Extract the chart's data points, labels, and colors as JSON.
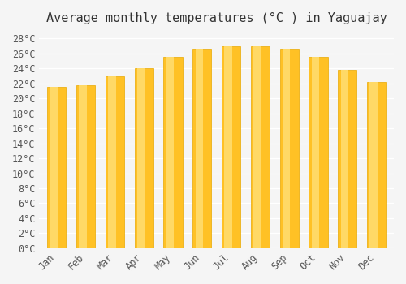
{
  "title": "Average monthly temperatures (°C ) in Yaguajay",
  "months": [
    "Jan",
    "Feb",
    "Mar",
    "Apr",
    "May",
    "Jun",
    "Jul",
    "Aug",
    "Sep",
    "Oct",
    "Nov",
    "Dec"
  ],
  "values": [
    21.5,
    21.8,
    23.0,
    24.0,
    25.5,
    26.5,
    27.0,
    27.0,
    26.5,
    25.5,
    23.8,
    22.2
  ],
  "bar_color_top": "#FFC125",
  "bar_color_bottom": "#FFD966",
  "ylim": [
    0,
    29
  ],
  "yticks": [
    0,
    2,
    4,
    6,
    8,
    10,
    12,
    14,
    16,
    18,
    20,
    22,
    24,
    26,
    28
  ],
  "background_color": "#f5f5f5",
  "grid_color": "#ffffff",
  "title_fontsize": 11,
  "tick_fontsize": 8.5,
  "font_family": "monospace"
}
